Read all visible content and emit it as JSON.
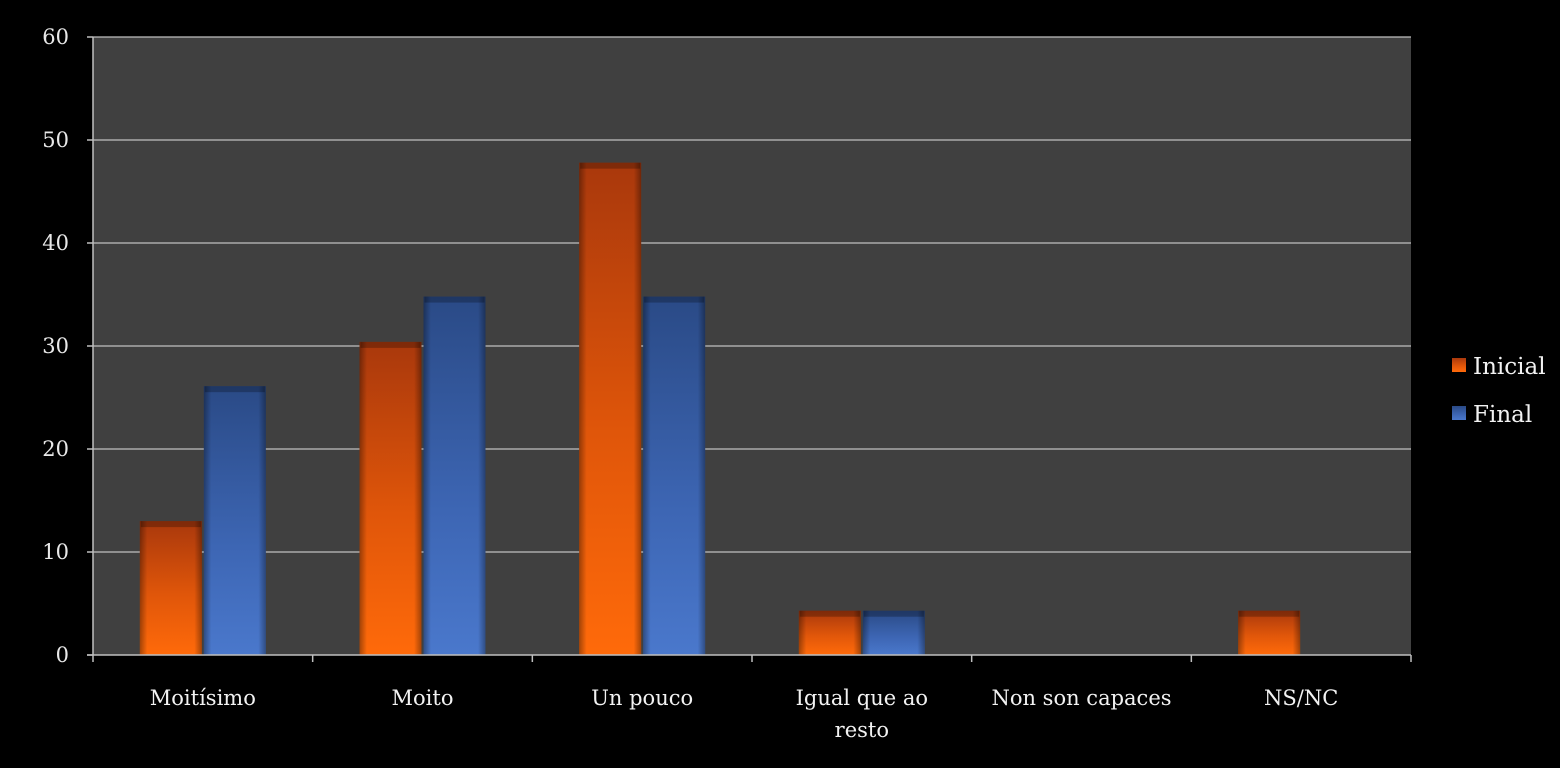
{
  "chart_data": {
    "type": "bar",
    "categories": [
      "Moitísimo",
      "Moito",
      "Un pouco",
      "Igual que ao resto",
      "Non son capaces",
      "NS/NC"
    ],
    "series": [
      {
        "name": "Inicial",
        "values": [
          13,
          30.4,
          47.8,
          4.3,
          0,
          4.3
        ],
        "color": "#f0620c"
      },
      {
        "name": "Final",
        "values": [
          26.1,
          34.8,
          34.8,
          4.3,
          0,
          0
        ],
        "color": "#4472c4"
      }
    ],
    "yticks": [
      "0",
      "10",
      "20",
      "30",
      "40",
      "50",
      "60"
    ],
    "ylim": [
      0,
      60
    ],
    "grid": true,
    "legend_position": "right",
    "colors": {
      "background": "#000000",
      "plot_area": "#404040",
      "gridline": "#bfbfbf",
      "text": "#f2f2f2"
    }
  }
}
